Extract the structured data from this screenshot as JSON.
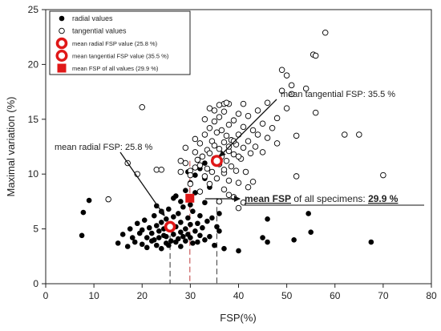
{
  "chart_data": {
    "type": "scatter",
    "xlabel": "FSP(%)",
    "ylabel": "Maximal variation (%)",
    "xlim": [
      0,
      80
    ],
    "ylim": [
      0,
      25
    ],
    "x_ticks": [
      0,
      10,
      20,
      30,
      40,
      50,
      60,
      70,
      80
    ],
    "y_ticks": [
      0,
      5,
      10,
      15,
      20,
      25
    ],
    "grid": false,
    "legend_position": "top-left",
    "legend": [
      {
        "label": "radial values",
        "marker": "filled-circle"
      },
      {
        "label": "tangential values",
        "marker": "open-circle"
      },
      {
        "label": "mean radial FSP value (25.8 %)",
        "marker": "red-circle-white-center"
      },
      {
        "label": "mean tangential FSP value (35.5 %)",
        "marker": "red-ring"
      },
      {
        "label": "mean FSP of all values (29.9 %)",
        "marker": "red-square"
      }
    ],
    "series": [
      {
        "name": "radial values",
        "marker": "filled-circle",
        "color": "#000000",
        "points": [
          [
            7.5,
            4.4
          ],
          [
            7.8,
            6.5
          ],
          [
            9,
            7.6
          ],
          [
            15,
            3.7
          ],
          [
            16,
            4.5
          ],
          [
            17,
            3.4
          ],
          [
            17.5,
            5.0
          ],
          [
            18,
            4.2
          ],
          [
            18.5,
            3.8
          ],
          [
            19,
            5.5
          ],
          [
            19.5,
            4.6
          ],
          [
            20,
            3.6
          ],
          [
            20,
            4.9
          ],
          [
            20.5,
            5.8
          ],
          [
            21,
            4.2
          ],
          [
            21,
            3.3
          ],
          [
            21.5,
            5.1
          ],
          [
            22,
            4.6
          ],
          [
            22,
            3.9
          ],
          [
            22.5,
            6.2
          ],
          [
            22.5,
            4.0
          ],
          [
            23,
            5.3
          ],
          [
            23,
            3.5
          ],
          [
            23,
            7.1
          ],
          [
            23.5,
            4.8
          ],
          [
            23.5,
            4.2
          ],
          [
            24,
            5.6
          ],
          [
            24,
            3.2
          ],
          [
            24,
            6.6
          ],
          [
            24.5,
            4.4
          ],
          [
            24.5,
            5.0
          ],
          [
            25,
            3.7
          ],
          [
            25,
            5.9
          ],
          [
            25,
            4.3
          ],
          [
            25.5,
            6.8
          ],
          [
            25.5,
            3.5
          ],
          [
            26,
            4.9
          ],
          [
            26,
            5.4
          ],
          [
            26,
            3.9
          ],
          [
            26.5,
            4.5
          ],
          [
            26.5,
            6.1
          ],
          [
            27,
            3.8
          ],
          [
            27,
            5.2
          ],
          [
            27.5,
            4.1
          ],
          [
            27.5,
            6.4
          ],
          [
            28,
            4.7
          ],
          [
            28,
            3.4
          ],
          [
            28,
            5.6
          ],
          [
            28.5,
            4.3
          ],
          [
            28.5,
            7.0
          ],
          [
            29,
            5.0
          ],
          [
            29,
            3.9
          ],
          [
            29.5,
            4.5
          ],
          [
            29.5,
            6.0
          ],
          [
            30,
            4.2
          ],
          [
            30,
            5.4
          ],
          [
            30.5,
            3.7
          ],
          [
            30.5,
            6.6
          ],
          [
            31,
            4.8
          ],
          [
            31.5,
            5.5
          ],
          [
            31.5,
            3.8
          ],
          [
            32,
            4.4
          ],
          [
            32,
            6.2
          ],
          [
            32.5,
            5.1
          ],
          [
            33,
            4.0
          ],
          [
            33,
            7.4
          ],
          [
            33.5,
            5.7
          ],
          [
            34,
            4.3
          ],
          [
            34.5,
            6.0
          ],
          [
            35,
            3.5
          ],
          [
            35.5,
            5.2
          ],
          [
            36,
            4.8
          ],
          [
            36,
            6.4
          ],
          [
            37,
            3.2
          ],
          [
            27,
            8.0
          ],
          [
            28,
            7.5
          ],
          [
            29,
            8.5
          ],
          [
            30,
            9.2
          ],
          [
            31,
            8.3
          ],
          [
            32,
            10.5
          ],
          [
            33,
            9.6
          ],
          [
            30,
            7.2
          ],
          [
            34,
            8.8
          ],
          [
            33,
            11.0
          ],
          [
            31,
            9.9
          ],
          [
            26.5,
            7.8
          ],
          [
            29.5,
            10.2
          ],
          [
            40,
            3.0
          ],
          [
            45,
            4.2
          ],
          [
            46,
            3.8
          ],
          [
            46,
            5.9
          ],
          [
            51.5,
            4.0
          ],
          [
            54.5,
            6.4
          ],
          [
            55,
            4.7
          ],
          [
            67.5,
            3.8
          ]
        ]
      },
      {
        "name": "tangential values",
        "marker": "open-circle",
        "color": "#000000",
        "points": [
          [
            13,
            7.7
          ],
          [
            17,
            11.0
          ],
          [
            19,
            10.0
          ],
          [
            20,
            16.1
          ],
          [
            23,
            10.4
          ],
          [
            24,
            10.4
          ],
          [
            28,
            10.2
          ],
          [
            28,
            11.2
          ],
          [
            29,
            11.0
          ],
          [
            29,
            12.4
          ],
          [
            30,
            10.3
          ],
          [
            30,
            9.1
          ],
          [
            31,
            10.6
          ],
          [
            31,
            12.0
          ],
          [
            31,
            13.2
          ],
          [
            31.5,
            11.3
          ],
          [
            32,
            10.8
          ],
          [
            32,
            12.8
          ],
          [
            32.5,
            11.6
          ],
          [
            33,
            9.8
          ],
          [
            33,
            13.6
          ],
          [
            33.5,
            10.5
          ],
          [
            33.5,
            12.2
          ],
          [
            34,
            11.9
          ],
          [
            34,
            14.2
          ],
          [
            34.5,
            10.2
          ],
          [
            34.5,
            13.0
          ],
          [
            35,
            11.4
          ],
          [
            35,
            12.6
          ],
          [
            35,
            14.8
          ],
          [
            35.5,
            9.6
          ],
          [
            35.5,
            13.8
          ],
          [
            36,
            10.9
          ],
          [
            36,
            12.3
          ],
          [
            36,
            15.2
          ],
          [
            36.5,
            11.6
          ],
          [
            36.5,
            14.0
          ],
          [
            37,
            10.1
          ],
          [
            37,
            12.9
          ],
          [
            37,
            15.7
          ],
          [
            37.5,
            11.2
          ],
          [
            37.5,
            13.5
          ],
          [
            38,
            9.4
          ],
          [
            38,
            12.1
          ],
          [
            38,
            14.5
          ],
          [
            38,
            16.4
          ],
          [
            38.5,
            10.7
          ],
          [
            38.5,
            13.1
          ],
          [
            39,
            11.8
          ],
          [
            39,
            14.9
          ],
          [
            39.5,
            10.3
          ],
          [
            39.5,
            12.7
          ],
          [
            40,
            9.2
          ],
          [
            40,
            13.6
          ],
          [
            40,
            15.5
          ],
          [
            40.5,
            11.4
          ],
          [
            41,
            12.4
          ],
          [
            41,
            14.3
          ],
          [
            41.5,
            10.2
          ],
          [
            42,
            13.0
          ],
          [
            42,
            15.3
          ],
          [
            42.5,
            11.9
          ],
          [
            43,
            14.0
          ],
          [
            43.5,
            12.5
          ],
          [
            44,
            13.6
          ],
          [
            44,
            15.8
          ],
          [
            45,
            12.0
          ],
          [
            45,
            14.6
          ],
          [
            46,
            13.3
          ],
          [
            46,
            16.5
          ],
          [
            47,
            14.2
          ],
          [
            48,
            12.8
          ],
          [
            48,
            15.1
          ],
          [
            50,
            16.0
          ],
          [
            49,
            17.6
          ],
          [
            49,
            19.5
          ],
          [
            50,
            19.0
          ],
          [
            51,
            18.1
          ],
          [
            51,
            17.3
          ],
          [
            54,
            17.8
          ],
          [
            55.5,
            20.9
          ],
          [
            56,
            20.8
          ],
          [
            58,
            22.9
          ],
          [
            52,
            9.8
          ],
          [
            52,
            13.5
          ],
          [
            56,
            15.6
          ],
          [
            62,
            13.6
          ],
          [
            65,
            13.6
          ],
          [
            70,
            9.9
          ],
          [
            40,
            6.9
          ],
          [
            38,
            8.1
          ],
          [
            41,
            7.4
          ],
          [
            37,
            8.6
          ],
          [
            42,
            8.8
          ],
          [
            39,
            7.9
          ],
          [
            43,
            9.3
          ],
          [
            36,
            7.5
          ],
          [
            34,
            9.1
          ],
          [
            32,
            8.4
          ],
          [
            30,
            9.9
          ],
          [
            37,
            10.4
          ],
          [
            40,
            11.6
          ],
          [
            38,
            12.5
          ],
          [
            39,
            13.0
          ],
          [
            41,
            16.4
          ],
          [
            37,
            16.4
          ],
          [
            36,
            16.3
          ],
          [
            35,
            15.8
          ],
          [
            33,
            15.0
          ],
          [
            34,
            16.0
          ],
          [
            37.5,
            16.5
          ]
        ]
      },
      {
        "name": "mean radial FSP value (25.8 %)",
        "marker": "red-circle-white-center",
        "color": "#e01818",
        "points": [
          [
            25.8,
            5.2
          ]
        ]
      },
      {
        "name": "mean tangential FSP value (35.5 %)",
        "marker": "red-ring",
        "color": "#e01818",
        "points": [
          [
            35.5,
            11.2
          ]
        ]
      },
      {
        "name": "mean FSP of all values (29.9 %)",
        "marker": "red-square",
        "color": "#e01818",
        "points": [
          [
            29.9,
            7.8
          ]
        ]
      }
    ],
    "annotations": {
      "radial": "mean radial FSP: 25.8 %",
      "tangential": "mean tangential FSP: 35.5 %",
      "all_prefix": "mean FSP",
      "all_middle": " of all specimens: ",
      "all_value": "29.9 %"
    },
    "reference_lines": [
      {
        "x": 25.8,
        "color": "#555555"
      },
      {
        "x": 29.9,
        "color": "#c85a5a"
      },
      {
        "x": 35.5,
        "color": "#555555"
      }
    ]
  }
}
